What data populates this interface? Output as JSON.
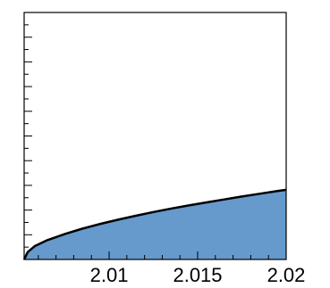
{
  "chart_data": {
    "type": "area",
    "title": "",
    "xlabel": "",
    "ylabel": "",
    "xlim": [
      2.0052,
      2.02
    ],
    "ylim": [
      0,
      1
    ],
    "grid": false,
    "x_ticks": [
      {
        "value": 2.01,
        "label": "2.01"
      },
      {
        "value": 2.015,
        "label": "2.015"
      },
      {
        "value": 2.02,
        "label": "2.02"
      }
    ],
    "y_major_ticks": [
      0,
      0.1,
      0.2,
      0.3,
      0.4,
      0.5,
      0.6,
      0.7,
      0.8,
      0.9,
      1.0
    ],
    "y_minor_ticks_per_major": 2,
    "series": [
      {
        "fill_color": "#6699cc",
        "line_color": "#000000",
        "x": [
          2.0052,
          2.0054,
          2.0058,
          2.0065,
          2.0075,
          2.0085,
          2.0095,
          2.0105,
          2.0115,
          2.0125,
          2.0135,
          2.0145,
          2.0155,
          2.0165,
          2.0175,
          2.0185,
          2.0195,
          2.02
        ],
        "y": [
          0,
          0.03,
          0.054,
          0.078,
          0.103,
          0.125,
          0.144,
          0.161,
          0.177,
          0.192,
          0.206,
          0.219,
          0.231,
          0.243,
          0.255,
          0.266,
          0.277,
          0.282
        ]
      }
    ]
  }
}
